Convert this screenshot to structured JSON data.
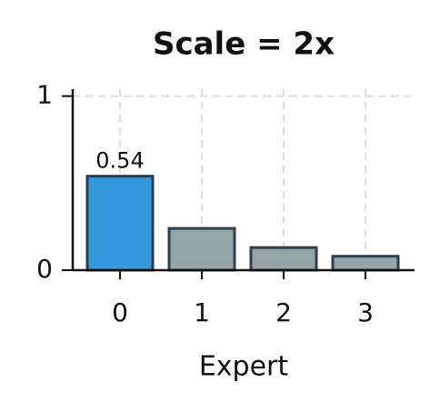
{
  "chart_data": {
    "type": "bar",
    "title": "Scale = 2x",
    "xlabel": "Expert",
    "categories": [
      "0",
      "1",
      "2",
      "3"
    ],
    "values": [
      0.54,
      0.24,
      0.13,
      0.08
    ],
    "colors": [
      "#3498db",
      "#95a5a6",
      "#95a5a6",
      "#95a5a6"
    ],
    "edgecolor": "#2c3e50",
    "ylim": [
      0,
      1.04
    ],
    "yticks": [
      0,
      1
    ],
    "grid": true
  }
}
